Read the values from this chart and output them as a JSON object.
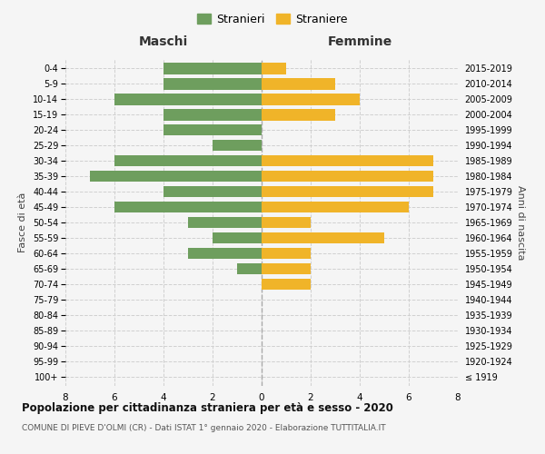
{
  "age_groups": [
    "100+",
    "95-99",
    "90-94",
    "85-89",
    "80-84",
    "75-79",
    "70-74",
    "65-69",
    "60-64",
    "55-59",
    "50-54",
    "45-49",
    "40-44",
    "35-39",
    "30-34",
    "25-29",
    "20-24",
    "15-19",
    "10-14",
    "5-9",
    "0-4"
  ],
  "birth_years": [
    "≤ 1919",
    "1920-1924",
    "1925-1929",
    "1930-1934",
    "1935-1939",
    "1940-1944",
    "1945-1949",
    "1950-1954",
    "1955-1959",
    "1960-1964",
    "1965-1969",
    "1970-1974",
    "1975-1979",
    "1980-1984",
    "1985-1989",
    "1990-1994",
    "1995-1999",
    "2000-2004",
    "2005-2009",
    "2010-2014",
    "2015-2019"
  ],
  "maschi": [
    0,
    0,
    0,
    0,
    0,
    0,
    0,
    1,
    3,
    2,
    3,
    6,
    4,
    7,
    6,
    2,
    4,
    4,
    6,
    4,
    4
  ],
  "femmine": [
    0,
    0,
    0,
    0,
    0,
    0,
    2,
    2,
    2,
    5,
    2,
    6,
    7,
    7,
    7,
    0,
    0,
    3,
    4,
    3,
    1
  ],
  "maschi_color": "#6e9e5e",
  "femmine_color": "#f0b429",
  "background_color": "#f5f5f5",
  "grid_color": "#d0d0d0",
  "title": "Popolazione per cittadinanza straniera per età e sesso - 2020",
  "subtitle": "COMUNE DI PIEVE D'OLMI (CR) - Dati ISTAT 1° gennaio 2020 - Elaborazione TUTTITALIA.IT",
  "xlabel_left": "Maschi",
  "xlabel_right": "Femmine",
  "ylabel_left": "Fasce di età",
  "ylabel_right": "Anni di nascita",
  "legend_maschi": "Stranieri",
  "legend_femmine": "Straniere",
  "xlim": 8,
  "bar_height": 0.75
}
